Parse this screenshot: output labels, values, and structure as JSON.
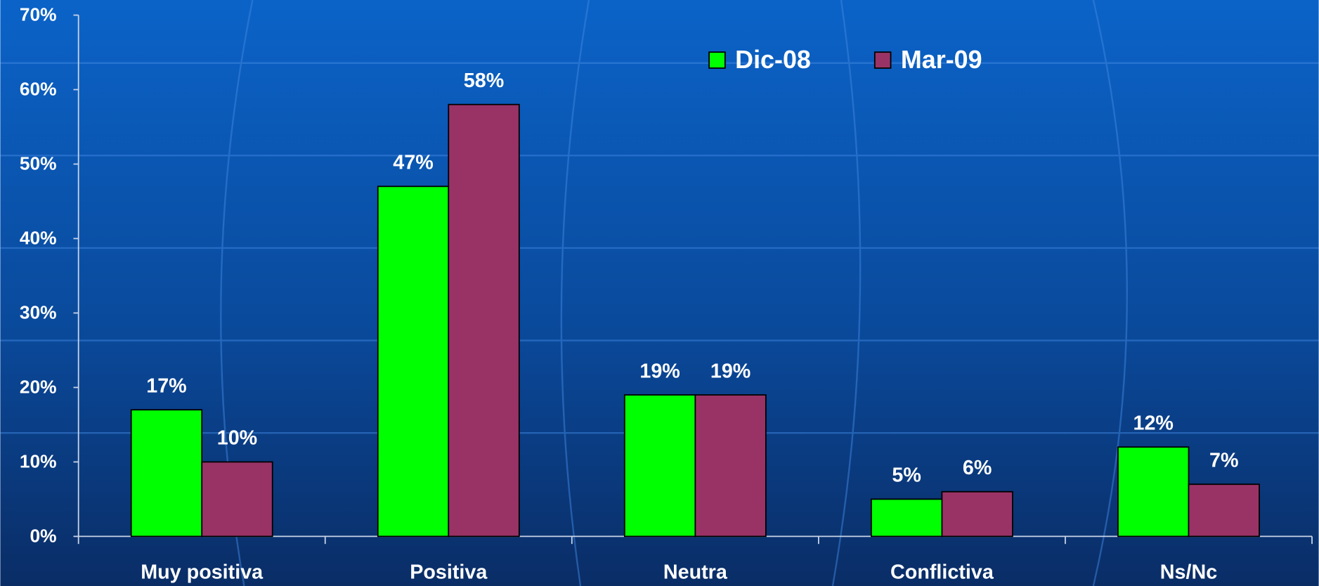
{
  "chart_data": {
    "type": "bar",
    "categories": [
      "Muy positiva",
      "Positiva",
      "Neutra",
      "Conflictiva",
      "Ns/Nc"
    ],
    "series": [
      {
        "name": "Dic-08",
        "color": "#00ff00",
        "values": [
          17,
          47,
          19,
          5,
          12
        ],
        "value_labels": [
          "17%",
          "47%",
          "19%",
          "5%",
          "12%"
        ]
      },
      {
        "name": "Mar-09",
        "color": "#993366",
        "values": [
          10,
          58,
          19,
          6,
          7
        ],
        "value_labels": [
          "10%",
          "58%",
          "19%",
          "6%",
          "7%"
        ]
      }
    ],
    "ylim": [
      0,
      70
    ],
    "yticks": [
      {
        "value": 0,
        "label": "0%"
      },
      {
        "value": 10,
        "label": "10%"
      },
      {
        "value": 20,
        "label": "20%"
      },
      {
        "value": 30,
        "label": "30%"
      },
      {
        "value": 40,
        "label": "40%"
      },
      {
        "value": 50,
        "label": "50%"
      },
      {
        "value": 60,
        "label": "60%"
      },
      {
        "value": 70,
        "label": "70%"
      }
    ]
  }
}
